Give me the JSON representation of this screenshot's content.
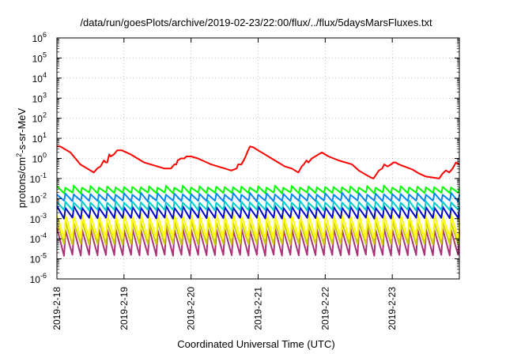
{
  "chart_data": {
    "type": "line",
    "title": "/data/run/goesPlots/archive/2019-02-23/22:00/flux/../flux/5daysMarsFluxes.txt",
    "xlabel": "Coordinated Universal Time (UTC)",
    "ylabel": {
      "pre": "protons/cm",
      "sup": "2",
      "post": "-s-sr-MeV"
    },
    "yscale": "log",
    "ylim": [
      1e-06,
      1000000.0
    ],
    "xlim_days": [
      0,
      6
    ],
    "x_ticks": [
      {
        "day": 0,
        "label": "2019-2-18"
      },
      {
        "day": 1,
        "label": "2019-2-19"
      },
      {
        "day": 2,
        "label": "2019-2-20"
      },
      {
        "day": 3,
        "label": "2019-2-21"
      },
      {
        "day": 4,
        "label": "2019-2-22"
      },
      {
        "day": 5,
        "label": "2019-2-23"
      }
    ],
    "y_ticks": [
      {
        "exp": -6,
        "base": "10",
        "sup": "-6"
      },
      {
        "exp": -5,
        "base": "10",
        "sup": "-5"
      },
      {
        "exp": -4,
        "base": "10",
        "sup": "-4"
      },
      {
        "exp": -3,
        "base": "10",
        "sup": "-3"
      },
      {
        "exp": -2,
        "base": "10",
        "sup": "-2"
      },
      {
        "exp": -1,
        "base": "10",
        "sup": "-1"
      },
      {
        "exp": 0,
        "base": "10",
        "sup": "0"
      },
      {
        "exp": 1,
        "base": "10",
        "sup": "1"
      },
      {
        "exp": 2,
        "base": "10",
        "sup": "2"
      },
      {
        "exp": 3,
        "base": "10",
        "sup": "3"
      },
      {
        "exp": 4,
        "base": "10",
        "sup": "4"
      },
      {
        "exp": 5,
        "base": "10",
        "sup": "5"
      },
      {
        "exp": 6,
        "base": "10",
        "sup": "6"
      }
    ],
    "grid": true,
    "legend": "none",
    "series": [
      {
        "color": "#ff0000",
        "points": [
          [
            0.0,
            0.6
          ],
          [
            0.05,
            0.6
          ],
          [
            0.2,
            0.3
          ],
          [
            0.35,
            -0.3
          ],
          [
            0.45,
            -0.5
          ],
          [
            0.5,
            -0.6
          ],
          [
            0.55,
            -0.7
          ],
          [
            0.6,
            -0.5
          ],
          [
            0.65,
            -0.4
          ],
          [
            0.7,
            -0.1
          ],
          [
            0.73,
            -0.2
          ],
          [
            0.75,
            -0.2
          ],
          [
            0.78,
            0.2
          ],
          [
            0.8,
            0.1
          ],
          [
            0.85,
            0.2
          ],
          [
            0.9,
            0.4
          ],
          [
            0.97,
            0.4
          ],
          [
            1.1,
            0.2
          ],
          [
            1.3,
            -0.2
          ],
          [
            1.5,
            -0.4
          ],
          [
            1.6,
            -0.5
          ],
          [
            1.7,
            -0.5
          ],
          [
            1.75,
            -0.3
          ],
          [
            1.78,
            -0.3
          ],
          [
            1.8,
            -0.1
          ],
          [
            1.85,
            0.0
          ],
          [
            1.9,
            0.0
          ],
          [
            1.93,
            0.1
          ],
          [
            1.97,
            0.1
          ],
          [
            2.0,
            0.1
          ],
          [
            2.1,
            0.0
          ],
          [
            2.3,
            -0.3
          ],
          [
            2.5,
            -0.5
          ],
          [
            2.6,
            -0.6
          ],
          [
            2.68,
            -0.5
          ],
          [
            2.7,
            -0.3
          ],
          [
            2.75,
            -0.3
          ],
          [
            2.8,
            0.0
          ],
          [
            2.85,
            0.4
          ],
          [
            2.88,
            0.6
          ],
          [
            2.93,
            0.55
          ],
          [
            3.0,
            0.4
          ],
          [
            3.1,
            0.2
          ],
          [
            3.2,
            0.0
          ],
          [
            3.3,
            -0.2
          ],
          [
            3.4,
            -0.4
          ],
          [
            3.5,
            -0.5
          ],
          [
            3.55,
            -0.6
          ],
          [
            3.6,
            -0.7
          ],
          [
            3.65,
            -0.4
          ],
          [
            3.68,
            -0.3
          ],
          [
            3.72,
            -0.1
          ],
          [
            3.75,
            -0.2
          ],
          [
            3.8,
            0.0
          ],
          [
            3.85,
            0.1
          ],
          [
            3.9,
            0.2
          ],
          [
            3.95,
            0.3
          ],
          [
            4.05,
            0.1
          ],
          [
            4.2,
            -0.1
          ],
          [
            4.4,
            -0.3
          ],
          [
            4.5,
            -0.6
          ],
          [
            4.6,
            -0.8
          ],
          [
            4.68,
            -0.95
          ],
          [
            4.72,
            -1.0
          ],
          [
            4.75,
            -0.85
          ],
          [
            4.8,
            -0.6
          ],
          [
            4.85,
            -0.5
          ],
          [
            4.88,
            -0.3
          ],
          [
            4.93,
            -0.4
          ],
          [
            4.98,
            -0.3
          ],
          [
            5.02,
            -0.2
          ],
          [
            5.05,
            -0.2
          ],
          [
            5.1,
            -0.3
          ],
          [
            5.3,
            -0.55
          ],
          [
            5.4,
            -0.75
          ],
          [
            5.5,
            -0.9
          ],
          [
            5.6,
            -0.95
          ],
          [
            5.7,
            -1.0
          ],
          [
            5.75,
            -0.75
          ],
          [
            5.8,
            -0.6
          ],
          [
            5.85,
            -0.7
          ],
          [
            5.9,
            -0.5
          ],
          [
            5.95,
            -0.2
          ],
          [
            6.0,
            -0.3
          ]
        ]
      },
      {
        "color": "#00ff00",
        "low": -1.75,
        "high": -1.35,
        "period": 0.125
      },
      {
        "color": "#0088ee",
        "low": -2.15,
        "high": -1.7,
        "period": 0.125
      },
      {
        "color": "#00cccc",
        "low": -2.6,
        "high": -2.1,
        "period": 0.125
      },
      {
        "color": "#0000cc",
        "low": -3.0,
        "high": -2.35,
        "period": 0.125
      },
      {
        "color": "#ffff00",
        "low": -4.0,
        "high": -2.75,
        "period": 0.125
      },
      {
        "color": "#cccc00",
        "low": -4.3,
        "high": -3.1,
        "period": 0.125
      },
      {
        "color": "#aa3377",
        "low": -4.85,
        "high": -3.45,
        "period": 0.125
      }
    ]
  }
}
